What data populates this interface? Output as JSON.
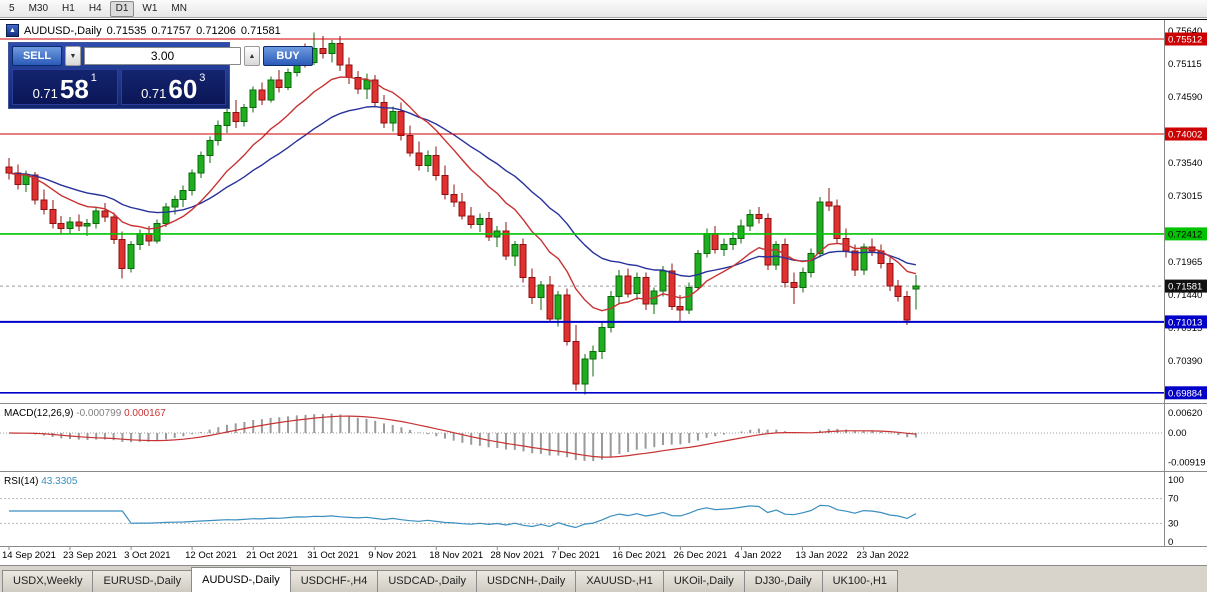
{
  "toolbar": {
    "timeframes": [
      "5",
      "M30",
      "H1",
      "H4",
      "D1",
      "W1",
      "MN"
    ],
    "active_index": 4
  },
  "chart_header": {
    "symbol_period": "AUDUSD-,Daily",
    "open": "0.71535",
    "high": "0.71757",
    "low": "0.71206",
    "close": "0.71581",
    "icon_glyph": "▲"
  },
  "trade_panel": {
    "sell_label": "SELL",
    "buy_label": "BUY",
    "volume": "3.00",
    "icons": {
      "down": "▼",
      "up": "▲"
    },
    "sell_price": {
      "base": "0.71",
      "pips": "58",
      "sup": "1"
    },
    "buy_price": {
      "base": "0.71",
      "pips": "60",
      "sup": "3"
    }
  },
  "price_axis": {
    "labels": [
      0.7564,
      0.75115,
      0.7459,
      0.7354,
      0.73015,
      0.71965,
      0.7144,
      0.70915,
      0.7039
    ],
    "badges": [
      {
        "value": 0.75512,
        "bg": "#cc0000",
        "fg": "#ffffff"
      },
      {
        "value": 0.74002,
        "bg": "#cc0000",
        "fg": "#ffffff"
      },
      {
        "value": 0.72412,
        "bg": "#00c400",
        "fg": "#000000"
      },
      {
        "value": 0.71581,
        "bg": "#111111",
        "fg": "#ffffff"
      },
      {
        "value": 0.71013,
        "bg": "#0000c8",
        "fg": "#ffffff"
      },
      {
        "value": 0.69884,
        "bg": "#0000c8",
        "fg": "#ffffff"
      }
    ]
  },
  "indicators": {
    "macd": {
      "title": "MACD(12,26,9)",
      "value_main": "-0.000799",
      "value_signal": "0.000167",
      "axis": [
        0.0062,
        0,
        -0.00919
      ],
      "hist_color": "#9a9a9a",
      "signal_color": "#c83232"
    },
    "rsi": {
      "title": "RSI(14)",
      "value": "43.3305",
      "axis": [
        100,
        70,
        30,
        0
      ],
      "levels": [
        70,
        30
      ],
      "color": "#3a8fc0"
    }
  },
  "tabs": {
    "items": [
      "USDX,Weekly",
      "EURUSD-,Daily",
      "AUDUSD-,Daily",
      "USDCHF-,H4",
      "USDCAD-,Daily",
      "USDCNH-,Daily",
      "XAUUSD-,H1",
      "UKOil-,Daily",
      "DJ30-,Daily",
      "UK100-,H1"
    ],
    "active_index": 2
  },
  "chart_data": {
    "type": "candlestick",
    "symbol": "AUDUSD-",
    "timeframe": "Daily",
    "current_price": 0.71581,
    "colors": {
      "up": "#1fae1f",
      "up_edge": "#0b6b0b",
      "down": "#e03030",
      "down_edge": "#8f1010"
    },
    "ma_fast": {
      "period": 12,
      "color": "#c83232"
    },
    "ma_slow": {
      "period": 26,
      "color": "#28329b"
    },
    "hlines": [
      {
        "price": 0.75512,
        "color": "#cc0000",
        "width": 1
      },
      {
        "price": 0.74002,
        "color": "#cc0000",
        "width": 1
      },
      {
        "price": 0.72412,
        "color": "#00c400",
        "width": 1.6
      },
      {
        "price": 0.71013,
        "color": "#0000c8",
        "width": 2
      },
      {
        "price": 0.69884,
        "color": "#0000c8",
        "width": 1.6
      }
    ],
    "date_labels": [
      {
        "i": 0,
        "label": "14 Sep 2021"
      },
      {
        "i": 7,
        "label": "23 Sep 2021"
      },
      {
        "i": 14,
        "label": "3 Oct 2021"
      },
      {
        "i": 21,
        "label": "12 Oct 2021"
      },
      {
        "i": 28,
        "label": "21 Oct 2021"
      },
      {
        "i": 35,
        "label": "31 Oct 2021"
      },
      {
        "i": 42,
        "label": "9 Nov 2021"
      },
      {
        "i": 49,
        "label": "18 Nov 2021"
      },
      {
        "i": 56,
        "label": "28 Nov 2021"
      },
      {
        "i": 63,
        "label": "7 Dec 2021"
      },
      {
        "i": 70,
        "label": "16 Dec 2021"
      },
      {
        "i": 77,
        "label": "26 Dec 2021"
      },
      {
        "i": 84,
        "label": "4 Jan 2022"
      },
      {
        "i": 91,
        "label": "13 Jan 2022"
      },
      {
        "i": 98,
        "label": "23 Jan 2022"
      }
    ],
    "candles": [
      [
        0.7348,
        0.7362,
        0.7328,
        0.7338
      ],
      [
        0.7338,
        0.7352,
        0.7312,
        0.732
      ],
      [
        0.732,
        0.7342,
        0.7308,
        0.7335
      ],
      [
        0.7335,
        0.734,
        0.7288,
        0.7295
      ],
      [
        0.7295,
        0.7312,
        0.7272,
        0.728
      ],
      [
        0.728,
        0.7295,
        0.725,
        0.7258
      ],
      [
        0.7258,
        0.727,
        0.724,
        0.725
      ],
      [
        0.725,
        0.7268,
        0.7242,
        0.726
      ],
      [
        0.726,
        0.7272,
        0.7246,
        0.7254
      ],
      [
        0.7254,
        0.7265,
        0.7238,
        0.7258
      ],
      [
        0.7258,
        0.7285,
        0.725,
        0.7278
      ],
      [
        0.7278,
        0.729,
        0.726,
        0.7268
      ],
      [
        0.7268,
        0.7275,
        0.7225,
        0.7232
      ],
      [
        0.7232,
        0.7245,
        0.717,
        0.7186
      ],
      [
        0.7186,
        0.723,
        0.718,
        0.7224
      ],
      [
        0.7224,
        0.7248,
        0.7216,
        0.7242
      ],
      [
        0.7242,
        0.7254,
        0.7222,
        0.723
      ],
      [
        0.723,
        0.7264,
        0.7226,
        0.7258
      ],
      [
        0.7258,
        0.729,
        0.7252,
        0.7284
      ],
      [
        0.7284,
        0.7302,
        0.7272,
        0.7296
      ],
      [
        0.7296,
        0.7318,
        0.7284,
        0.731
      ],
      [
        0.731,
        0.7344,
        0.7302,
        0.7338
      ],
      [
        0.7338,
        0.7372,
        0.733,
        0.7366
      ],
      [
        0.7366,
        0.7396,
        0.7354,
        0.739
      ],
      [
        0.739,
        0.7422,
        0.7382,
        0.7414
      ],
      [
        0.7414,
        0.7442,
        0.7402,
        0.7434
      ],
      [
        0.7434,
        0.7454,
        0.741,
        0.742
      ],
      [
        0.742,
        0.7448,
        0.7412,
        0.7442
      ],
      [
        0.7442,
        0.7476,
        0.7434,
        0.747
      ],
      [
        0.747,
        0.7482,
        0.7446,
        0.7454
      ],
      [
        0.7454,
        0.7492,
        0.745,
        0.7486
      ],
      [
        0.7486,
        0.7502,
        0.7466,
        0.7474
      ],
      [
        0.7474,
        0.7504,
        0.747,
        0.7498
      ],
      [
        0.7498,
        0.7526,
        0.7492,
        0.752
      ],
      [
        0.752,
        0.7544,
        0.7506,
        0.7514
      ],
      [
        0.7514,
        0.7562,
        0.751,
        0.7536
      ],
      [
        0.7536,
        0.7556,
        0.752,
        0.7528
      ],
      [
        0.7528,
        0.755,
        0.7514,
        0.7544
      ],
      [
        0.7544,
        0.7556,
        0.75,
        0.751
      ],
      [
        0.751,
        0.7522,
        0.748,
        0.749
      ],
      [
        0.749,
        0.75,
        0.7464,
        0.7472
      ],
      [
        0.7472,
        0.7496,
        0.7456,
        0.7486
      ],
      [
        0.7486,
        0.7494,
        0.7444,
        0.745
      ],
      [
        0.745,
        0.7462,
        0.741,
        0.7418
      ],
      [
        0.7418,
        0.7444,
        0.7404,
        0.7436
      ],
      [
        0.7436,
        0.745,
        0.739,
        0.7398
      ],
      [
        0.7398,
        0.7414,
        0.7364,
        0.737
      ],
      [
        0.737,
        0.7388,
        0.7342,
        0.735
      ],
      [
        0.735,
        0.7374,
        0.734,
        0.7366
      ],
      [
        0.7366,
        0.738,
        0.7326,
        0.7334
      ],
      [
        0.7334,
        0.735,
        0.7296,
        0.7304
      ],
      [
        0.7304,
        0.732,
        0.7284,
        0.7292
      ],
      [
        0.7292,
        0.7306,
        0.7264,
        0.727
      ],
      [
        0.727,
        0.7284,
        0.725,
        0.7256
      ],
      [
        0.7256,
        0.7274,
        0.7244,
        0.7266
      ],
      [
        0.7266,
        0.7276,
        0.723,
        0.7236
      ],
      [
        0.7236,
        0.7254,
        0.722,
        0.7246
      ],
      [
        0.7246,
        0.726,
        0.72,
        0.7206
      ],
      [
        0.7206,
        0.723,
        0.719,
        0.7224
      ],
      [
        0.7224,
        0.7234,
        0.7164,
        0.7172
      ],
      [
        0.7172,
        0.7186,
        0.713,
        0.714
      ],
      [
        0.714,
        0.7166,
        0.712,
        0.716
      ],
      [
        0.716,
        0.7174,
        0.71,
        0.7106
      ],
      [
        0.7106,
        0.715,
        0.7094,
        0.7144
      ],
      [
        0.7144,
        0.7154,
        0.7064,
        0.707
      ],
      [
        0.707,
        0.7096,
        0.6992,
        0.7002
      ],
      [
        0.7002,
        0.705,
        0.6986,
        0.7042
      ],
      [
        0.7042,
        0.7064,
        0.7014,
        0.7054
      ],
      [
        0.7054,
        0.71,
        0.7042,
        0.7092
      ],
      [
        0.7092,
        0.715,
        0.7084,
        0.7142
      ],
      [
        0.7142,
        0.7184,
        0.713,
        0.7174
      ],
      [
        0.7174,
        0.7186,
        0.714,
        0.7146
      ],
      [
        0.7146,
        0.718,
        0.7136,
        0.7172
      ],
      [
        0.7172,
        0.718,
        0.712,
        0.713
      ],
      [
        0.713,
        0.7156,
        0.7114,
        0.715
      ],
      [
        0.715,
        0.719,
        0.7142,
        0.7182
      ],
      [
        0.7182,
        0.7194,
        0.712,
        0.7126
      ],
      [
        0.7126,
        0.7144,
        0.71,
        0.712
      ],
      [
        0.712,
        0.7164,
        0.7114,
        0.7156
      ],
      [
        0.7156,
        0.7216,
        0.7152,
        0.721
      ],
      [
        0.721,
        0.725,
        0.7204,
        0.7242
      ],
      [
        0.7242,
        0.7254,
        0.721,
        0.7216
      ],
      [
        0.7216,
        0.7234,
        0.7206,
        0.7224
      ],
      [
        0.7224,
        0.7244,
        0.7216,
        0.7234
      ],
      [
        0.7234,
        0.7264,
        0.7226,
        0.7254
      ],
      [
        0.7254,
        0.728,
        0.7246,
        0.7272
      ],
      [
        0.7272,
        0.7284,
        0.7258,
        0.7266
      ],
      [
        0.7266,
        0.7274,
        0.7184,
        0.7192
      ],
      [
        0.7192,
        0.723,
        0.7184,
        0.7224
      ],
      [
        0.7224,
        0.7234,
        0.7156,
        0.7164
      ],
      [
        0.7164,
        0.718,
        0.713,
        0.7156
      ],
      [
        0.7156,
        0.7188,
        0.7148,
        0.718
      ],
      [
        0.718,
        0.7218,
        0.7172,
        0.721
      ],
      [
        0.721,
        0.73,
        0.7204,
        0.7292
      ],
      [
        0.7292,
        0.7314,
        0.7278,
        0.7286
      ],
      [
        0.7286,
        0.7296,
        0.7226,
        0.7234
      ],
      [
        0.7234,
        0.725,
        0.7204,
        0.7214
      ],
      [
        0.7214,
        0.7224,
        0.7174,
        0.7184
      ],
      [
        0.7184,
        0.7226,
        0.7176,
        0.722
      ],
      [
        0.722,
        0.7234,
        0.7206,
        0.7214
      ],
      [
        0.7214,
        0.7224,
        0.7186,
        0.7194
      ],
      [
        0.7194,
        0.7204,
        0.715,
        0.7158
      ],
      [
        0.7158,
        0.7168,
        0.7134,
        0.7142
      ],
      [
        0.7142,
        0.715,
        0.7096,
        0.7104
      ],
      [
        0.71535,
        0.71757,
        0.71206,
        0.71581
      ]
    ]
  }
}
